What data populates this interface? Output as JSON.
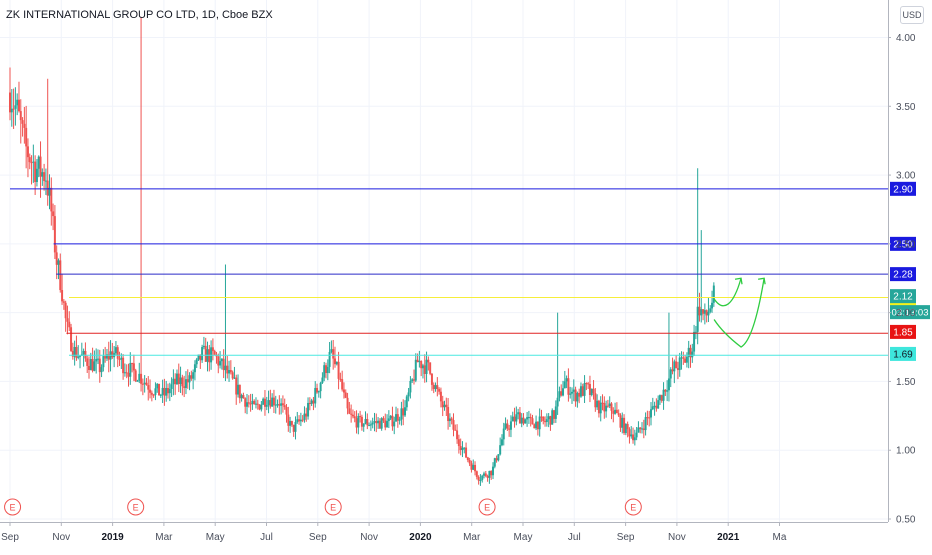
{
  "chart_title": "ZK INTERNATIONAL GROUP CO LTD, 1D, Cboe BZX",
  "currency": "USD",
  "countdown": "03:13:03",
  "earnings_marker": "E",
  "colors": {
    "up": "#26a69a",
    "down": "#ef5350",
    "grid": "#f0f3fa",
    "axis": "#b2b5be",
    "text": "#4a4f5c"
  },
  "chart_data": {
    "type": "candlestick",
    "title": "ZK INTERNATIONAL GROUP CO LTD, 1D, Cboe BZX",
    "ylim": [
      0.5,
      4.15
    ],
    "y_ticks": [
      0.5,
      1.0,
      1.5,
      2.0,
      2.5,
      3.0,
      3.5,
      4.0
    ],
    "y_tick_labels": [
      "0.50",
      "1.00",
      "1.50",
      "2.00",
      "2.50",
      "3.00",
      "3.50",
      "4.00"
    ],
    "x_ticks": [
      {
        "label": "Sep",
        "month": 0,
        "bold": false
      },
      {
        "label": "Nov",
        "month": 2,
        "bold": false
      },
      {
        "label": "2019",
        "month": 4,
        "bold": true
      },
      {
        "label": "Mar",
        "month": 6,
        "bold": false
      },
      {
        "label": "May",
        "month": 8,
        "bold": false
      },
      {
        "label": "Jul",
        "month": 10,
        "bold": false
      },
      {
        "label": "Sep",
        "month": 12,
        "bold": false
      },
      {
        "label": "Nov",
        "month": 14,
        "bold": false
      },
      {
        "label": "2020",
        "month": 16,
        "bold": true
      },
      {
        "label": "Mar",
        "month": 18,
        "bold": false
      },
      {
        "label": "May",
        "month": 20,
        "bold": false
      },
      {
        "label": "Jul",
        "month": 22,
        "bold": false
      },
      {
        "label": "Sep",
        "month": 24,
        "bold": false
      },
      {
        "label": "Nov",
        "month": 26,
        "bold": false
      },
      {
        "label": "2021",
        "month": 28,
        "bold": true
      },
      {
        "label": "Ma",
        "month": 30,
        "bold": false
      }
    ],
    "x_range_months": [
      0,
      30.1
    ],
    "earnings_months": [
      0.1,
      4.9,
      12.6,
      18.6,
      24.3
    ],
    "horizontal_levels": [
      {
        "label": "2.90",
        "value": 2.9,
        "color": "#1a1adf",
        "label_bg": "#1a1adf",
        "label_fg": "#ffffff",
        "start_month": 0.0
      },
      {
        "label": "2.50",
        "value": 2.5,
        "color": "#1a1adf",
        "label_bg": "#1a1adf",
        "label_fg": "#ffffff",
        "start_month": 1.7
      },
      {
        "label": "2.28",
        "value": 2.28,
        "color": "#2a2ac8",
        "label_bg": "#1a1adf",
        "label_fg": "#ffffff",
        "start_month": 1.8
      },
      {
        "label": "2.11",
        "value": 2.11,
        "color": "#f6ee3a",
        "label_bg": "#f6f21a",
        "label_fg": "#131722",
        "start_month": 2.3,
        "label_value": 2.02
      },
      {
        "label": "1.85",
        "value": 1.85,
        "color": "#e02424",
        "label_bg": "#e81313",
        "label_fg": "#ffffff",
        "start_month": 2.2,
        "label_value": 1.86
      },
      {
        "label": "1.69",
        "value": 1.69,
        "color": "#4ae8e0",
        "label_bg": "#3ee6dc",
        "label_fg": "#131722",
        "start_month": 2.3,
        "label_value": 1.7
      }
    ],
    "last_price": {
      "label": "2.12",
      "value": 2.12,
      "bg": "#26a69a"
    },
    "keypoints": [
      [
        0.0,
        3.6
      ],
      [
        0.3,
        3.45
      ],
      [
        0.6,
        3.2
      ],
      [
        1.0,
        3.05
      ],
      [
        1.4,
        3.0
      ],
      [
        1.6,
        2.75
      ],
      [
        1.8,
        2.4
      ],
      [
        2.0,
        2.2
      ],
      [
        2.2,
        1.9
      ],
      [
        2.5,
        1.72
      ],
      [
        3.0,
        1.65
      ],
      [
        3.5,
        1.6
      ],
      [
        4.0,
        1.72
      ],
      [
        4.5,
        1.6
      ],
      [
        5.0,
        1.55
      ],
      [
        5.5,
        1.45
      ],
      [
        6.0,
        1.4
      ],
      [
        6.5,
        1.5
      ],
      [
        7.0,
        1.5
      ],
      [
        7.5,
        1.7
      ],
      [
        8.0,
        1.68
      ],
      [
        8.5,
        1.55
      ],
      [
        9.0,
        1.4
      ],
      [
        9.5,
        1.3
      ],
      [
        10.0,
        1.38
      ],
      [
        10.5,
        1.35
      ],
      [
        11.0,
        1.15
      ],
      [
        11.5,
        1.25
      ],
      [
        12.0,
        1.45
      ],
      [
        12.5,
        1.7
      ],
      [
        12.8,
        1.55
      ],
      [
        13.2,
        1.25
      ],
      [
        13.6,
        1.2
      ],
      [
        14.2,
        1.2
      ],
      [
        14.8,
        1.2
      ],
      [
        15.4,
        1.3
      ],
      [
        15.9,
        1.65
      ],
      [
        16.3,
        1.6
      ],
      [
        16.8,
        1.35
      ],
      [
        17.3,
        1.15
      ],
      [
        17.8,
        0.95
      ],
      [
        18.3,
        0.8
      ],
      [
        18.8,
        0.85
      ],
      [
        19.3,
        1.15
      ],
      [
        19.8,
        1.25
      ],
      [
        20.3,
        1.2
      ],
      [
        20.8,
        1.2
      ],
      [
        21.2,
        1.25
      ],
      [
        21.6,
        1.5
      ],
      [
        22.0,
        1.4
      ],
      [
        22.5,
        1.45
      ],
      [
        23.0,
        1.3
      ],
      [
        23.5,
        1.3
      ],
      [
        24.0,
        1.15
      ],
      [
        24.4,
        1.1
      ],
      [
        24.9,
        1.25
      ],
      [
        25.4,
        1.4
      ],
      [
        25.9,
        1.6
      ],
      [
        26.3,
        1.65
      ],
      [
        26.6,
        1.75
      ],
      [
        26.85,
        2.05
      ],
      [
        27.1,
        1.95
      ],
      [
        27.3,
        2.05
      ],
      [
        27.45,
        2.12
      ]
    ],
    "spikes": [
      [
        1.5,
        3.7
      ],
      [
        5.1,
        4.15
      ],
      [
        8.4,
        2.35
      ],
      [
        21.35,
        2.0
      ],
      [
        25.7,
        2.0
      ],
      [
        26.8,
        3.05
      ],
      [
        26.95,
        2.6
      ]
    ],
    "annotation_curves": [
      [
        [
          27.45,
          2.1
        ],
        [
          27.8,
          2.0
        ],
        [
          28.2,
          2.05
        ],
        [
          28.5,
          2.25
        ]
      ],
      [
        [
          27.45,
          1.95
        ],
        [
          27.8,
          1.85
        ],
        [
          28.5,
          1.75
        ],
        [
          29.0,
          1.8
        ],
        [
          29.4,
          2.25
        ]
      ]
    ]
  }
}
